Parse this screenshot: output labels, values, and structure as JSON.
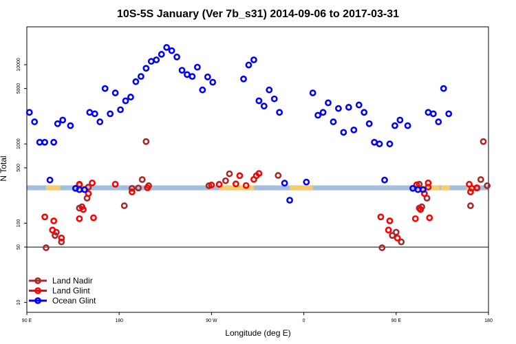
{
  "chart_data": {
    "type": "scatter",
    "title": "10S-5S January (Ver 7b_s31)   2014-09-06 to 2017-03-31",
    "xlabel": "Longitude (deg E)",
    "ylabel": "N Total",
    "xlim": [
      90,
      450
    ],
    "ylim": [
      7.5,
      30000
    ],
    "yscale": "log",
    "x_ticks": [
      {
        "value": 90,
        "label": "90 E"
      },
      {
        "value": 162,
        "label": "180"
      },
      {
        "value": 234,
        "label": "90 W"
      },
      {
        "value": 306,
        "label": "0"
      },
      {
        "value": 378,
        "label": "90 E"
      },
      {
        "value": 450,
        "label": "180"
      }
    ],
    "y_ticks": [
      {
        "value": 10,
        "label": "10"
      },
      {
        "value": 50,
        "label": "50"
      },
      {
        "value": 100,
        "label": "100"
      },
      {
        "value": 500,
        "label": "500"
      },
      {
        "value": 1000,
        "label": "1000"
      },
      {
        "value": 5000,
        "label": "5000"
      },
      {
        "value": 10000,
        "label": "10000"
      }
    ],
    "hline": 50,
    "legend_position": "bottom-left",
    "series": [
      {
        "name": "Land Nadir",
        "color": "#a52a2a",
        "points": [
          [
            105,
            49
          ],
          [
            112,
            70
          ],
          [
            113,
            77
          ],
          [
            117,
            58
          ],
          [
            131,
            155
          ],
          [
            131,
            310
          ],
          [
            133,
            161
          ],
          [
            137,
            207
          ],
          [
            138,
            285
          ],
          [
            166,
            166
          ],
          [
            172,
            275
          ],
          [
            177,
            278
          ],
          [
            180,
            355
          ],
          [
            183,
            1071
          ],
          [
            185,
            297
          ],
          [
            232,
            297
          ],
          [
            245,
            343
          ],
          [
            248,
            420
          ],
          [
            269,
            397
          ],
          [
            286,
            400
          ],
          [
            367,
            49
          ],
          [
            375,
            70
          ],
          [
            378,
            77
          ],
          [
            382,
            58
          ],
          [
            396,
            155
          ],
          [
            396,
            310
          ],
          [
            398,
            161
          ],
          [
            402,
            207
          ],
          [
            403,
            285
          ],
          [
            436,
            166
          ],
          [
            437,
            275
          ],
          [
            441,
            278
          ],
          [
            444,
            355
          ],
          [
            446,
            1071
          ],
          [
            449,
            297
          ]
        ]
      },
      {
        "name": "Land Glint",
        "color": "#ff0000",
        "points": [
          [
            104,
            120
          ],
          [
            110,
            82
          ],
          [
            111,
            107
          ],
          [
            117,
            65
          ],
          [
            131,
            114
          ],
          [
            131,
            305
          ],
          [
            134,
            149
          ],
          [
            138,
            236
          ],
          [
            141,
            322
          ],
          [
            142,
            117
          ],
          [
            159,
            310
          ],
          [
            172,
            248
          ],
          [
            184,
            280
          ],
          [
            234,
            303
          ],
          [
            240,
            309
          ],
          [
            253,
            313
          ],
          [
            256,
            398
          ],
          [
            261,
            299
          ],
          [
            267,
            357
          ],
          [
            271,
            424
          ],
          [
            366,
            120
          ],
          [
            372,
            82
          ],
          [
            373,
            107
          ],
          [
            379,
            65
          ],
          [
            393,
            114
          ],
          [
            394,
            305
          ],
          [
            397,
            149
          ],
          [
            400,
            236
          ],
          [
            403,
            322
          ],
          [
            404,
            117
          ],
          [
            435,
            310
          ],
          [
            436,
            248
          ],
          [
            441,
            280
          ]
        ]
      },
      {
        "name": "Ocean Glint",
        "color": "#0000ff",
        "points": [
          [
            92,
            2500
          ],
          [
            96,
            1900
          ],
          [
            100,
            1050
          ],
          [
            104,
            1050
          ],
          [
            108,
            350
          ],
          [
            111,
            1050
          ],
          [
            114,
            1800
          ],
          [
            118,
            2000
          ],
          [
            124,
            1700
          ],
          [
            128,
            275
          ],
          [
            131,
            265
          ],
          [
            135,
            265
          ],
          [
            139,
            2500
          ],
          [
            143,
            2400
          ],
          [
            147,
            1900
          ],
          [
            151,
            5000
          ],
          [
            155,
            2400
          ],
          [
            159,
            4400
          ],
          [
            163,
            2700
          ],
          [
            167,
            3500
          ],
          [
            171,
            3900
          ],
          [
            175,
            6100
          ],
          [
            179,
            7100
          ],
          [
            183,
            9000
          ],
          [
            187,
            11000
          ],
          [
            191,
            11500
          ],
          [
            195,
            13500
          ],
          [
            199,
            16500
          ],
          [
            203,
            15000
          ],
          [
            207,
            12500
          ],
          [
            211,
            8500
          ],
          [
            215,
            7500
          ],
          [
            219,
            7100
          ],
          [
            223,
            9300
          ],
          [
            227,
            4800
          ],
          [
            231,
            7000
          ],
          [
            235,
            6000
          ],
          [
            259,
            6600
          ],
          [
            263,
            9900
          ],
          [
            267,
            11500
          ],
          [
            271,
            3500
          ],
          [
            275,
            3000
          ],
          [
            279,
            4800
          ],
          [
            283,
            3700
          ],
          [
            287,
            2500
          ],
          [
            291,
            320
          ],
          [
            295,
            195
          ],
          [
            308,
            330
          ],
          [
            313,
            4400
          ],
          [
            317,
            2300
          ],
          [
            321,
            2500
          ],
          [
            325,
            3300
          ],
          [
            329,
            1900
          ],
          [
            333,
            2800
          ],
          [
            337,
            1400
          ],
          [
            341,
            2900
          ],
          [
            345,
            1500
          ],
          [
            349,
            3100
          ],
          [
            353,
            2500
          ],
          [
            357,
            1800
          ],
          [
            361,
            1050
          ],
          [
            365,
            1000
          ],
          [
            369,
            350
          ],
          [
            373,
            1000
          ],
          [
            377,
            1700
          ],
          [
            381,
            2000
          ],
          [
            387,
            1700
          ],
          [
            391,
            275
          ],
          [
            395,
            265
          ],
          [
            399,
            265
          ],
          [
            403,
            2500
          ],
          [
            407,
            2400
          ],
          [
            411,
            1900
          ],
          [
            415,
            5000
          ],
          [
            419,
            2400
          ]
        ]
      }
    ],
    "shaded_band": {
      "ymin": 260,
      "ymax": 300,
      "color": "#a4bede"
    },
    "land_segments": [
      [
        105,
        116
      ],
      [
        130,
        138
      ],
      [
        240,
        267
      ],
      [
        295,
        313
      ],
      [
        395,
        412
      ],
      [
        413,
        420
      ],
      [
        433,
        440
      ]
    ]
  }
}
